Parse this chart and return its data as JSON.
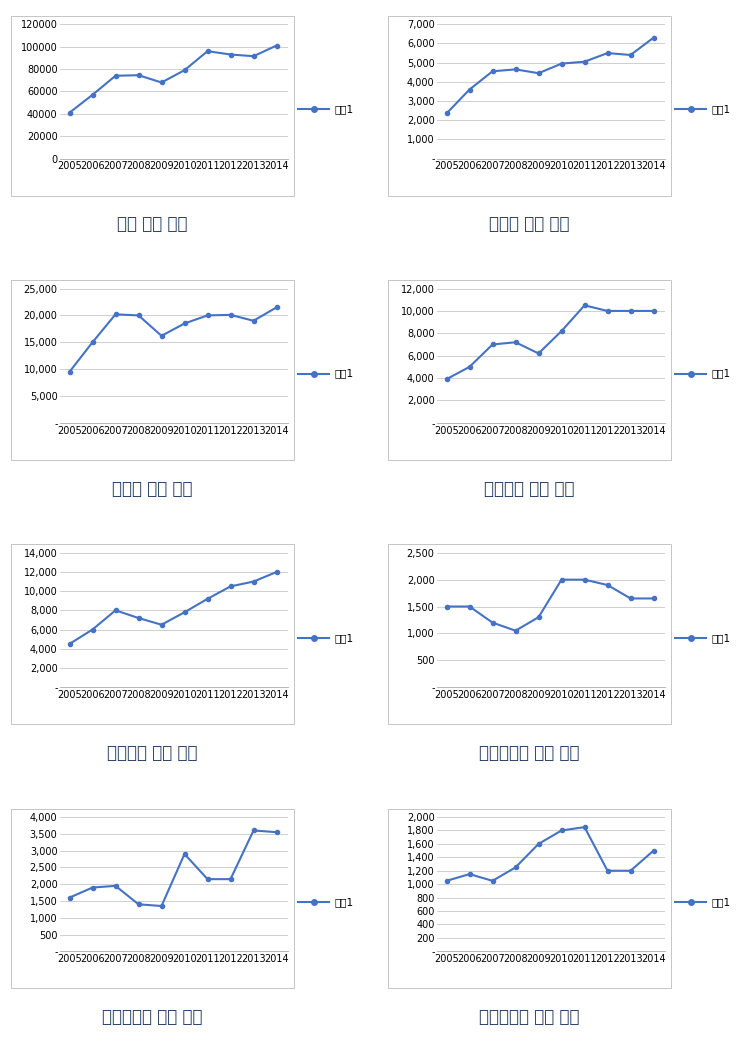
{
  "years": [
    2005,
    2006,
    2007,
    2008,
    2009,
    2010,
    2011,
    2012,
    2013,
    2014
  ],
  "charts": [
    {
      "title": "전국 신축 추이",
      "values": [
        41000,
        57000,
        74000,
        74500,
        68000,
        79000,
        96000,
        93000,
        91500,
        101000
      ],
      "ylim": [
        0,
        120000
      ],
      "yticks": [
        0,
        20000,
        40000,
        60000,
        80000,
        100000,
        120000
      ],
      "ytick_labels": [
        "0",
        "20000",
        "40000",
        "60000",
        "80000",
        "100000",
        "120000"
      ]
    },
    {
      "title": "강원도 신축 추이",
      "values": [
        2350,
        3600,
        4550,
        4650,
        4450,
        4950,
        5050,
        5500,
        5400,
        6300
      ],
      "ylim": [
        0,
        7000
      ],
      "yticks": [
        0,
        1000,
        2000,
        3000,
        4000,
        5000,
        6000,
        7000
      ],
      "ytick_labels": [
        "-",
        "1,000",
        "2,000",
        "3,000",
        "4,000",
        "5,000",
        "6,000",
        "7,000"
      ]
    },
    {
      "title": "경기도 신축 추이",
      "values": [
        9500,
        15000,
        20200,
        20000,
        16200,
        18500,
        20000,
        20100,
        19000,
        21500
      ],
      "ylim": [
        0,
        25000
      ],
      "yticks": [
        0,
        5000,
        10000,
        15000,
        20000,
        25000
      ],
      "ytick_labels": [
        "-",
        "5,000",
        "10,000",
        "15,000",
        "20,000",
        "25,000"
      ]
    },
    {
      "title": "경상남도 신축 추이",
      "values": [
        3900,
        5000,
        7000,
        7200,
        6200,
        8200,
        10500,
        10000,
        10000,
        10000
      ],
      "ylim": [
        0,
        12000
      ],
      "yticks": [
        0,
        2000,
        4000,
        6000,
        8000,
        10000,
        12000
      ],
      "ytick_labels": [
        "-",
        "2,000",
        "4,000",
        "6,000",
        "8,000",
        "10,000",
        "12,000"
      ]
    },
    {
      "title": "경상북도 신축 추이",
      "values": [
        4500,
        6000,
        8000,
        7200,
        6500,
        7800,
        9200,
        10500,
        11000,
        12000
      ],
      "ylim": [
        0,
        14000
      ],
      "yticks": [
        0,
        2000,
        4000,
        6000,
        8000,
        10000,
        12000,
        14000
      ],
      "ytick_labels": [
        "-",
        "2,000",
        "4,000",
        "6,000",
        "8,000",
        "10,000",
        "12,000",
        "14,000"
      ]
    },
    {
      "title": "광주광역시 신축 추이",
      "values": [
        1500,
        1500,
        1200,
        1050,
        1300,
        2000,
        2000,
        1900,
        1650,
        1650
      ],
      "ylim": [
        0,
        2500
      ],
      "yticks": [
        0,
        500,
        1000,
        1500,
        2000,
        2500
      ],
      "ytick_labels": [
        "-",
        "500",
        "1,000",
        "1,500",
        "2,000",
        "2,500"
      ]
    },
    {
      "title": "대구광역시 신축 추이",
      "values": [
        1600,
        1900,
        1950,
        1400,
        1350,
        2900,
        2150,
        2150,
        3600,
        3550
      ],
      "ylim": [
        0,
        4000
      ],
      "yticks": [
        0,
        500,
        1000,
        1500,
        2000,
        2500,
        3000,
        3500,
        4000
      ],
      "ytick_labels": [
        "-",
        "500",
        "1,000",
        "1,500",
        "2,000",
        "2,500",
        "3,000",
        "3,500",
        "4,000"
      ]
    },
    {
      "title": "대전광역시 신축 추이",
      "values": [
        1050,
        1150,
        1050,
        1250,
        1600,
        1800,
        1850,
        1200,
        1200,
        1500
      ],
      "ylim": [
        0,
        2000
      ],
      "yticks": [
        0,
        200,
        400,
        600,
        800,
        1000,
        1200,
        1400,
        1600,
        1800,
        2000
      ],
      "ytick_labels": [
        "-",
        "200",
        "400",
        "600",
        "800",
        "1,000",
        "1,200",
        "1,400",
        "1,600",
        "1,800",
        "2,000"
      ]
    }
  ],
  "line_color": "#4472c4",
  "legend_label": "계열1",
  "title_color": "#243F60",
  "title_fontsize": 12,
  "tick_fontsize": 7,
  "border_color": "#bbbbbb"
}
